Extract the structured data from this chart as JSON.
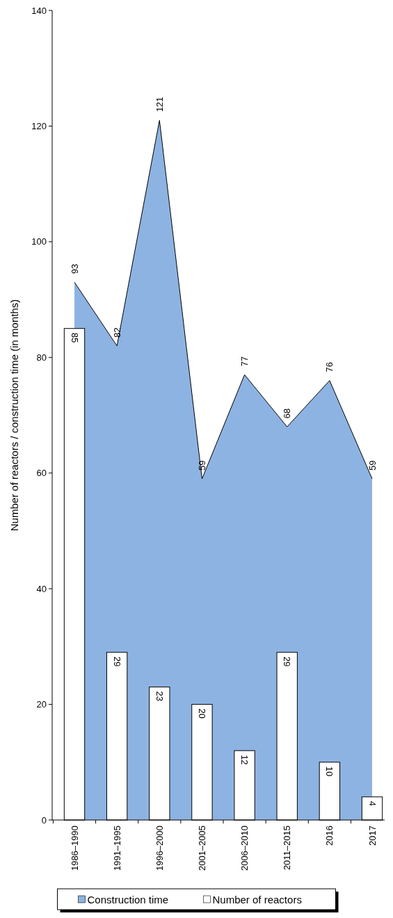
{
  "chart_data": {
    "type": "bar",
    "ylabel": "Number of reactors / construction time (in months)",
    "categories": [
      "1986–1990",
      "1991–1995",
      "1996–2000",
      "2001–2005",
      "2006–2010",
      "2011–2015",
      "2016",
      "2017"
    ],
    "series": [
      {
        "name": "Construction time",
        "type": "area",
        "color": "#8db3e2",
        "values": [
          93,
          82,
          121,
          59,
          77,
          68,
          76,
          59
        ]
      },
      {
        "name": "Number of reactors",
        "color": "#ffffff",
        "values": [
          85,
          29,
          23,
          20,
          12,
          29,
          10,
          4
        ]
      }
    ],
    "ylim": [
      0,
      140
    ],
    "yticks": [
      0,
      20,
      40,
      60,
      80,
      100,
      120,
      140
    ],
    "grid": false,
    "legend": "bottom",
    "data_labels": true
  }
}
